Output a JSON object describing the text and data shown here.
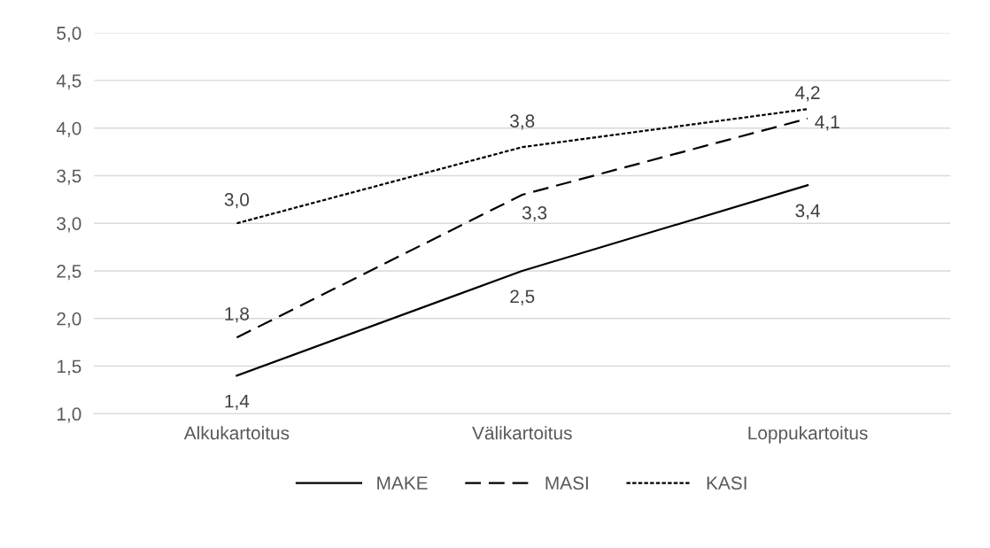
{
  "chart_data": {
    "type": "line",
    "categories": [
      "Alkukartoitus",
      "Välikartoitus",
      "Loppukartoitus"
    ],
    "series": [
      {
        "name": "MAKE",
        "color": "#000000",
        "line_style": "solid",
        "values": [
          1.4,
          2.5,
          3.4
        ],
        "value_labels": [
          "1,4",
          "2,5",
          "3,4"
        ]
      },
      {
        "name": "MASI",
        "color": "#000000",
        "line_style": "dashed",
        "values": [
          1.8,
          3.3,
          4.1
        ],
        "value_labels": [
          "1,8",
          "3,3",
          "4,1"
        ]
      },
      {
        "name": "KASI",
        "color": "#000000",
        "line_style": "dotted",
        "values": [
          3.0,
          3.8,
          4.2
        ],
        "value_labels": [
          "3,0",
          "3,8",
          "4,2"
        ]
      }
    ],
    "ylim": [
      1.0,
      5.0
    ],
    "yticks": [
      {
        "value": 1.0,
        "label": "1,0"
      },
      {
        "value": 1.5,
        "label": "1,5"
      },
      {
        "value": 2.0,
        "label": "2,0"
      },
      {
        "value": 2.5,
        "label": "2,5"
      },
      {
        "value": 3.0,
        "label": "3,0"
      },
      {
        "value": 3.5,
        "label": "3,5"
      },
      {
        "value": 4.0,
        "label": "4,0"
      },
      {
        "value": 4.5,
        "label": "4,5"
      },
      {
        "value": 5.0,
        "label": "5,0"
      }
    ],
    "grid": "y",
    "legend": "bottom",
    "marker": "none"
  }
}
